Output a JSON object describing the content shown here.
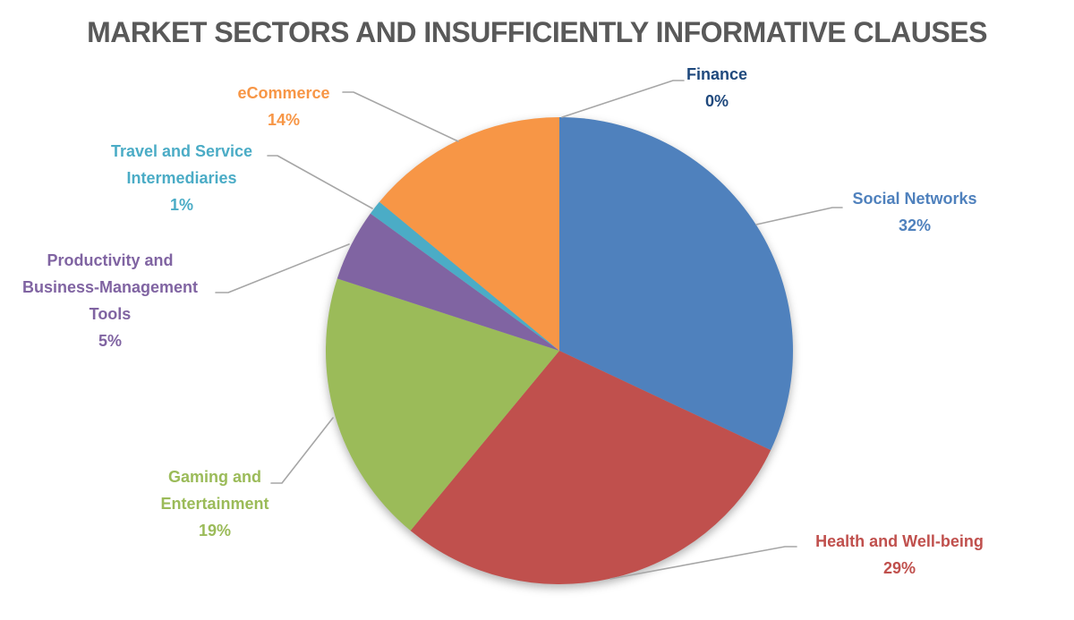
{
  "chart_data": {
    "type": "pie",
    "title": "MARKET SECTORS AND INSUFFICIENTLY INFORMATIVE CLAUSES",
    "unit": "percent",
    "start_angle_deg": 0,
    "direction": "clockwise",
    "legend": "none",
    "label_style": "outside-with-leader-lines",
    "slices": [
      {
        "label": "Finance",
        "value": 0,
        "display": "0%",
        "color": "#1F497D"
      },
      {
        "label": "Social Networks",
        "value": 32,
        "display": "32%",
        "color": "#4F81BD"
      },
      {
        "label": "Health and Well-being",
        "value": 29,
        "display": "29%",
        "color": "#C0504D"
      },
      {
        "label": "Gaming and Entertainment",
        "value": 19,
        "display": "19%",
        "color": "#9BBB59"
      },
      {
        "label": "Productivity and Business-Management Tools",
        "value": 5,
        "display": "5%",
        "color": "#8064A2"
      },
      {
        "label": "Travel and Service Intermediaries",
        "value": 1,
        "display": "1%",
        "color": "#4BACC6"
      },
      {
        "label": "eCommerce",
        "value": 14,
        "display": "14%",
        "color": "#F79646"
      }
    ]
  },
  "colors": {
    "title_text": "#595959",
    "leader_line": "#A6A6A6",
    "background": "#FFFFFF"
  }
}
